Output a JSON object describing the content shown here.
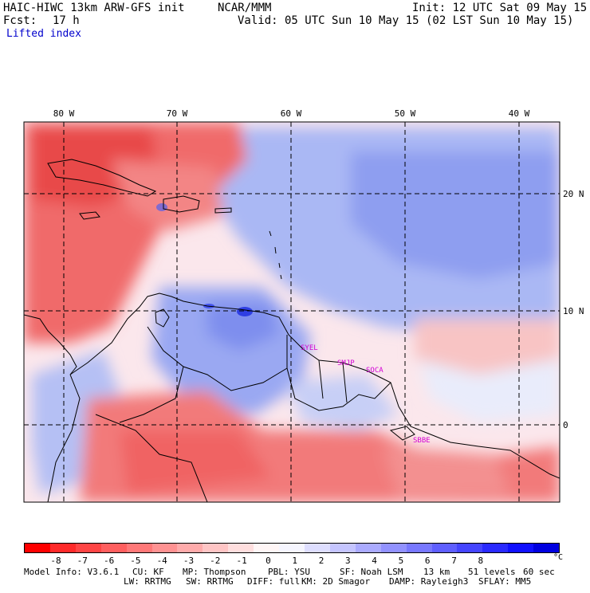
{
  "header": {
    "title_left": "HAIC-HIWC 13km ARW-GFS init",
    "org": "NCAR/MMM",
    "init": "Init: 12 UTC Sat 09 May 15",
    "fcst_label": "Fcst:",
    "fcst_value": "17 h",
    "valid": "Valid: 05 UTC Sun 10 May 15 (02 LST Sun 10 May 15)",
    "field": "Lifted index"
  },
  "map": {
    "lon_labels": [
      "80 W",
      "70 W",
      "60 W",
      "50 W",
      "40 W"
    ],
    "lat_labels": [
      "20 N",
      "10 N",
      "0"
    ],
    "stations": [
      "SYEL",
      "SMJP",
      "SOCA",
      "SBBE"
    ],
    "colors": {
      "positive_red": "#ff3333",
      "negative_blue": "#3344ff",
      "neutral": "#ffffff",
      "grid": "#000000"
    }
  },
  "colorbar": {
    "ticks": [
      "-8",
      "-7",
      "-6",
      "-5",
      "-4",
      "-3",
      "-2",
      "-1",
      "0",
      "1",
      "2",
      "3",
      "4",
      "5",
      "6",
      "7",
      "8"
    ],
    "unit": "°C",
    "colors": [
      "#ff0000",
      "#ff2a2a",
      "#ff4545",
      "#ff5f5f",
      "#ff7878",
      "#ff9292",
      "#ffabab",
      "#ffc5c5",
      "#ffdede",
      "#fff6f6",
      "#f6f6ff",
      "#dedeff",
      "#c5c5ff",
      "#ababff",
      "#9292ff",
      "#7878ff",
      "#5f5fff",
      "#4545ff",
      "#2a2aff",
      "#1010ff",
      "#0000e0"
    ]
  },
  "footer": {
    "model_info": "Model Info: V3.6.1",
    "cu": "CU: KF",
    "mp": "MP: Thompson",
    "pbl": "PBL: YSU",
    "sf": "SF: Noah LSM",
    "res": "13 km",
    "levels": "51 levels",
    "dt": "60 sec",
    "lw": "LW: RRTMG",
    "sw": "SW: RRTMG",
    "diff": "DIFF: full",
    "km": "KM: 2D Smagor",
    "damp": "DAMP: Rayleigh3",
    "sflay": "SFLAY: MM5"
  }
}
